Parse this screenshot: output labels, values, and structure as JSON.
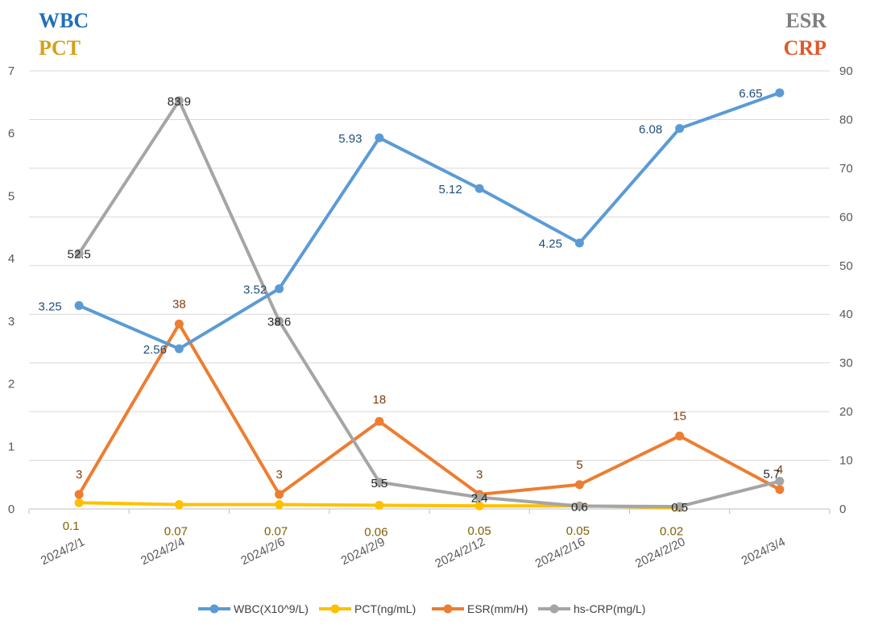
{
  "chart_data": {
    "type": "line",
    "corner_titles": [
      {
        "text": "WBC",
        "color": "#1f6fb5",
        "corner": "top-left-1"
      },
      {
        "text": "PCT",
        "color": "#d4a017",
        "corner": "top-left-2"
      },
      {
        "text": "ESR",
        "color": "#7f7f7f",
        "corner": "top-right-1"
      },
      {
        "text": "CRP",
        "color": "#e05a2b",
        "corner": "top-right-2"
      }
    ],
    "categories": [
      "2024/2/1",
      "2024/2/4",
      "2024/2/6",
      "2024/2/9",
      "2024/2/12",
      "2024/2/16",
      "2024/2/20",
      "2024/3/4"
    ],
    "y_left": {
      "min": 0,
      "max": 7,
      "ticks": [
        "0",
        "1",
        "2",
        "3",
        "4",
        "5",
        "6",
        "7"
      ]
    },
    "y_right": {
      "min": 0,
      "max": 90,
      "ticks": [
        "0",
        "10",
        "20",
        "30",
        "40",
        "50",
        "60",
        "70",
        "80",
        "90"
      ]
    },
    "series": [
      {
        "name": "WBC(X10^9/L)",
        "axis": "left",
        "color": "#5b9bd5",
        "labelColor": "#1f4e79",
        "values": [
          3.25,
          2.56,
          3.52,
          5.93,
          5.12,
          4.25,
          6.08,
          6.65
        ],
        "labels": [
          "3.25",
          "2.56",
          "3.52",
          "5.93",
          "5.12",
          "4.25",
          "6.08",
          "6.65"
        ]
      },
      {
        "name": "PCT(ng/mL)",
        "axis": "left",
        "color": "#ffc000",
        "labelColor": "#7f6000",
        "values": [
          0.1,
          0.07,
          0.07,
          0.06,
          0.05,
          0.05,
          0.02,
          null
        ],
        "labels": [
          "0.1",
          "0.07",
          "0.07",
          "0.06",
          "0.05",
          "0.05",
          "0.02",
          null
        ]
      },
      {
        "name": "ESR(mm/H)",
        "axis": "right",
        "color": "#ed7d31",
        "labelColor": "#843c0c",
        "values": [
          3,
          38,
          3,
          18,
          3,
          5,
          15,
          4
        ],
        "labels": [
          "3",
          "38",
          "3",
          "18",
          "3",
          "5",
          "15",
          "4"
        ]
      },
      {
        "name": "hs-CRP(mg/L)",
        "axis": "right",
        "color": "#a5a5a5",
        "labelColor": "#262626",
        "values": [
          52.5,
          83.9,
          38.6,
          5.5,
          2.4,
          0.6,
          0.5,
          5.7
        ],
        "labels": [
          "52.5",
          "83.9",
          "38.6",
          "5.5",
          "2.4",
          "0.6",
          "0.5",
          "5.7"
        ]
      }
    ],
    "legend_position": "bottom",
    "grid": true
  }
}
